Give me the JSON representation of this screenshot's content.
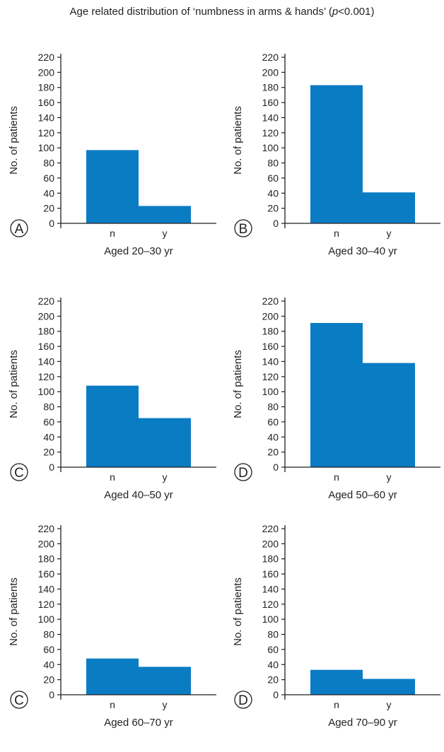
{
  "figure": {
    "title_before": "Age related distribution of ‘numbness in arms & hands’ (",
    "title_p": "p",
    "title_after": "<0.001)"
  },
  "colors": {
    "bar": "#0a7cc4",
    "axis": "#231f20"
  },
  "chart_data": [
    {
      "type": "bar",
      "panel": "A",
      "xlabel": "Aged 20–30 yr",
      "ylabel": "No. of patients",
      "categories": [
        "n",
        "y"
      ],
      "values": [
        97,
        23
      ],
      "ylim": [
        0,
        220
      ],
      "yticks": [
        0,
        20,
        40,
        60,
        80,
        100,
        120,
        140,
        160,
        180,
        200,
        220
      ]
    },
    {
      "type": "bar",
      "panel": "B",
      "xlabel": "Aged 30–40 yr",
      "ylabel": "No. of patients",
      "categories": [
        "n",
        "y"
      ],
      "values": [
        183,
        41
      ],
      "ylim": [
        0,
        220
      ],
      "yticks": [
        0,
        20,
        40,
        60,
        80,
        100,
        120,
        140,
        160,
        180,
        200,
        220
      ]
    },
    {
      "type": "bar",
      "panel": "C",
      "xlabel": "Aged 40–50 yr",
      "ylabel": "No. of patients",
      "categories": [
        "n",
        "y"
      ],
      "values": [
        108,
        65
      ],
      "ylim": [
        0,
        220
      ],
      "yticks": [
        0,
        20,
        40,
        60,
        80,
        100,
        120,
        140,
        160,
        180,
        200,
        220
      ]
    },
    {
      "type": "bar",
      "panel": "D",
      "xlabel": "Aged 50–60 yr",
      "ylabel": "No. of patients",
      "categories": [
        "n",
        "y"
      ],
      "values": [
        191,
        138
      ],
      "ylim": [
        0,
        220
      ],
      "yticks": [
        0,
        20,
        40,
        60,
        80,
        100,
        120,
        140,
        160,
        180,
        200,
        220
      ]
    },
    {
      "type": "bar",
      "panel": "C",
      "xlabel": "Aged 60–70 yr",
      "ylabel": "No. of patients",
      "categories": [
        "n",
        "y"
      ],
      "values": [
        48,
        37
      ],
      "ylim": [
        0,
        220
      ],
      "yticks": [
        0,
        20,
        40,
        60,
        80,
        100,
        120,
        140,
        160,
        180,
        200,
        220
      ]
    },
    {
      "type": "bar",
      "panel": "D",
      "xlabel": "Aged 70–90 yr",
      "ylabel": "No. of patients",
      "categories": [
        "n",
        "y"
      ],
      "values": [
        33,
        21
      ],
      "ylim": [
        0,
        220
      ],
      "yticks": [
        0,
        20,
        40,
        60,
        80,
        100,
        120,
        140,
        160,
        180,
        200,
        220
      ]
    }
  ]
}
